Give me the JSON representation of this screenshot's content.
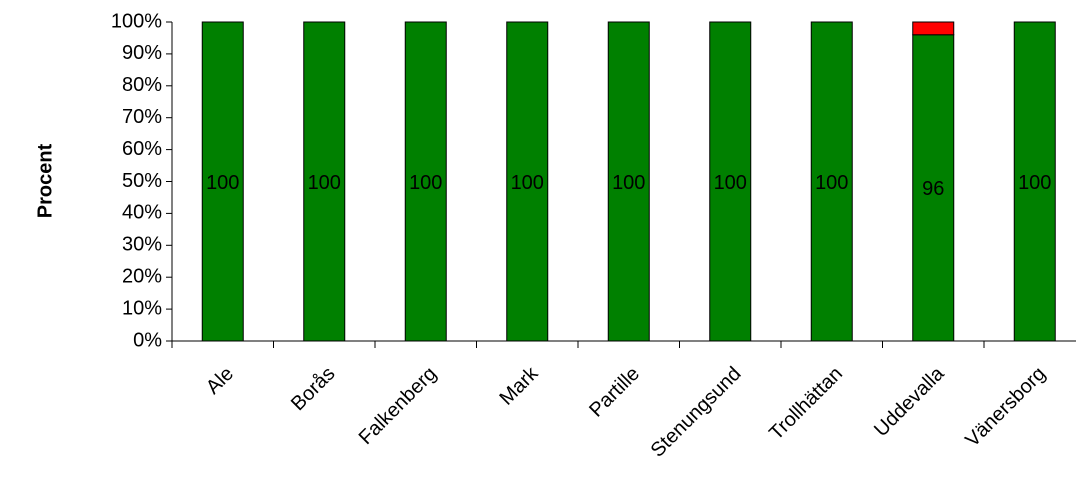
{
  "chart_data": {
    "type": "stacked-bar",
    "y_label": "Procent",
    "categories": [
      "Ale",
      "Borås",
      "Falkenberg",
      "Mark",
      "Partille",
      "Stenungsund",
      "Trollhättan",
      "Uddevalla",
      "Vänersborg"
    ],
    "series": [
      {
        "color": "#008000",
        "values": [
          100,
          100,
          100,
          100,
          100,
          100,
          100,
          96,
          100
        ],
        "show_labels": true
      },
      {
        "color": "#ff0000",
        "values": [
          0,
          0,
          0,
          0,
          0,
          0,
          0,
          4,
          0
        ],
        "show_labels": false
      }
    ],
    "ylim": [
      0,
      100
    ],
    "yticks": [
      {
        "value": 0,
        "label": "0%"
      },
      {
        "value": 10,
        "label": "10%"
      },
      {
        "value": 20,
        "label": "20%"
      },
      {
        "value": 30,
        "label": "30%"
      },
      {
        "value": 40,
        "label": "40%"
      },
      {
        "value": 50,
        "label": "50%"
      },
      {
        "value": 60,
        "label": "60%"
      },
      {
        "value": 70,
        "label": "70%"
      },
      {
        "value": 80,
        "label": "80%"
      },
      {
        "value": 90,
        "label": "90%"
      },
      {
        "value": 100,
        "label": "100%"
      }
    ],
    "grid": false
  }
}
